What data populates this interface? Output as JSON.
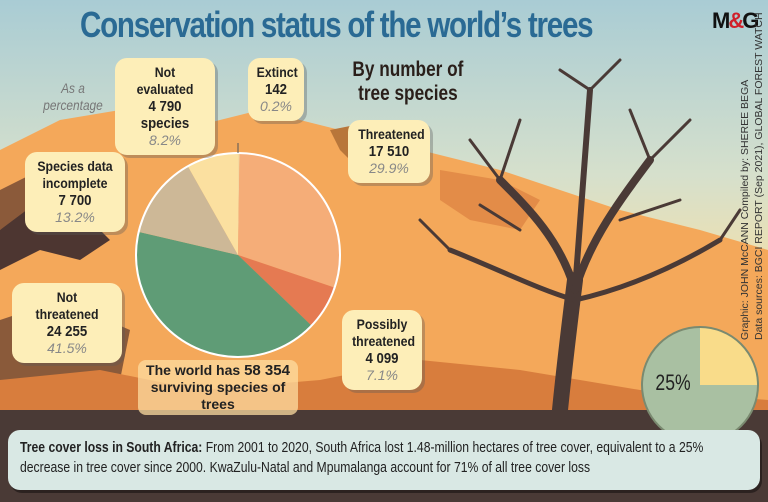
{
  "title": "Conservation status of the world’s trees",
  "logo": "M&G",
  "credits": {
    "graphic": "Graphic: JOHN McCANN  Compiled by: SHEREE BEGA",
    "sources": "Data sources: BGCI REPORT (Sep 2021), GLOBAL FOREST WATCH"
  },
  "subtitle_line1": "By number of",
  "subtitle_line2": "tree species",
  "as_percentage": "As a percentage",
  "world_total": {
    "prefix": "The world has",
    "value": "58 354",
    "suffix": "surviving species of trees"
  },
  "chart_data": [
    {
      "type": "pie",
      "title": "By number of tree species",
      "unit": "species",
      "slices": [
        {
          "label": "Extinct",
          "value": 142,
          "value_text": "142",
          "percent": "0.2%",
          "color": "#f5d9a0"
        },
        {
          "label": "Threatened",
          "value": 17510,
          "value_text": "17 510",
          "percent": "29.9%",
          "color": "#f5ad78"
        },
        {
          "label": "Possibly threatened",
          "value": 4099,
          "value_text": "4 099",
          "percent": "7.1%",
          "color": "#e57a52"
        },
        {
          "label": "Not threatened",
          "value": 24255,
          "value_text": "24 255",
          "percent": "41.5%",
          "color": "#5f9c76"
        },
        {
          "label": "Species data incomplete",
          "value": 7700,
          "value_text": "7 700",
          "percent": "13.2%",
          "color": "#cdb897"
        },
        {
          "label": "Not evaluated",
          "value": 4790,
          "value_text": "4 790 species",
          "percent": "8.2%",
          "color": "#fbe0a0"
        }
      ]
    },
    {
      "type": "pie",
      "slices": [
        {
          "label": "25%",
          "value": 25,
          "color": "#f9dc8a"
        },
        {
          "label": "",
          "value": 75,
          "color": "#a9c0a2"
        }
      ]
    }
  ],
  "bubble_labels": {
    "not_evaluated": "Not evaluated",
    "extinct": "Extinct",
    "threatened": "Threatened",
    "incomplete_1": "Species data",
    "incomplete_2": "incomplete",
    "not_threatened": "Not threatened",
    "possibly_1": "Possibly",
    "possibly_2": "threatened"
  },
  "footer": {
    "heading": "Tree cover loss in South Africa:",
    "text": "From 2001 to 2020, South Africa lost 1.48-million hectares of tree cover, equivalent to a 25% decrease in tree cover since 2000. KwaZulu-Natal and Mpumalanga account for 71% of all tree cover loss"
  }
}
